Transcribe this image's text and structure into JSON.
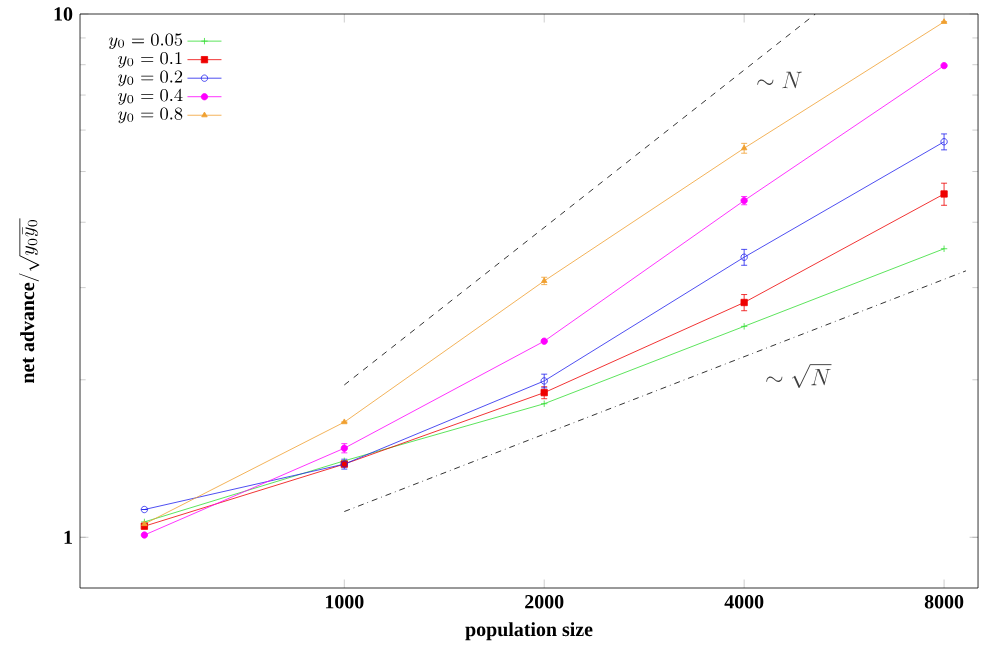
{
  "chart_data": {
    "type": "line",
    "xlabel": "population size",
    "ylabel": "\\textbf{net advance}/\\sqrt{y_0\\bar{y}_0}",
    "x": [
      500,
      1000,
      2000,
      4000,
      8000
    ],
    "log": "xy",
    "xlim": [
      400,
      9000
    ],
    "ylim": [
      0.8,
      10
    ],
    "xticks": [
      1000,
      2000,
      4000,
      8000
    ],
    "yticks": [
      1,
      10
    ],
    "grid": false,
    "legend": "top left",
    "series": [
      {
        "name": "y_0 = 0.05",
        "color": "#33dd33",
        "marker": "cross",
        "values": [
          1.07,
          1.4,
          1.8,
          2.53,
          3.56
        ]
      },
      {
        "name": "y_0 = 0.1",
        "color": "#ee0000",
        "marker": "square",
        "values": [
          1.05,
          1.38,
          1.89,
          2.81,
          4.53
        ],
        "errors": [
          null,
          null,
          0.05,
          0.1,
          0.22
        ]
      },
      {
        "name": "y_0 = 0.2",
        "color": "#2222ee",
        "marker": "circle",
        "values": [
          1.13,
          1.38,
          1.99,
          3.43,
          5.7
        ],
        "errors": [
          null,
          0.03,
          0.06,
          0.12,
          0.2
        ]
      },
      {
        "name": "y_0 = 0.4",
        "color": "#ff00ff",
        "marker": "circle",
        "values": [
          1.01,
          1.48,
          2.37,
          4.4,
          7.97
        ],
        "errors": [
          null,
          0.03,
          null,
          0.08,
          null
        ]
      },
      {
        "name": "y_0 = 0.8",
        "color": "#f0a030",
        "marker": "triangle",
        "values": [
          1.06,
          1.66,
          3.09,
          5.54,
          9.66
        ],
        "errors": [
          null,
          null,
          0.05,
          0.12,
          null
        ]
      },
      {
        "type": "line",
        "color": "#000000",
        "line_style": "dashed",
        "marker": "none",
        "x": [
          1000,
          5120
        ],
        "values": [
          1.955,
          10
        ]
      },
      {
        "type": "line",
        "color": "#000000",
        "line_style": "dashdot",
        "marker": "none",
        "x": [
          1000,
          8630
        ],
        "values": [
          1.12,
          3.23
        ]
      }
    ],
    "annotations": [
      "\\sim N",
      "\\sim \\sqrt{N}"
    ]
  }
}
